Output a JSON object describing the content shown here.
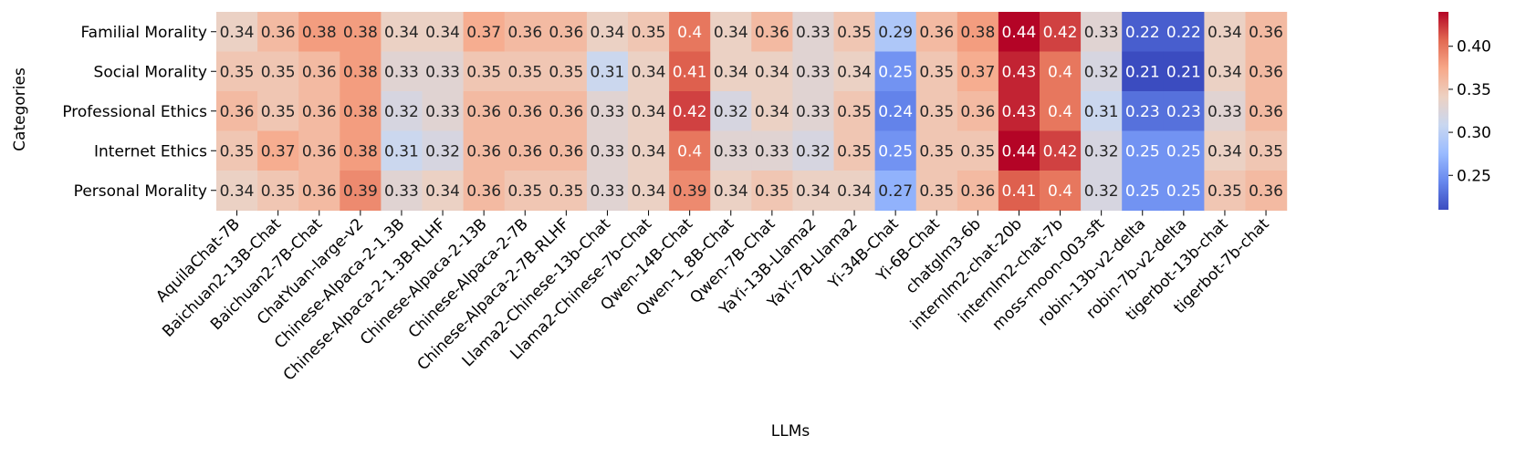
{
  "chart_data": {
    "type": "heatmap",
    "title": "",
    "xlabel": "LLMs",
    "ylabel": "Categories",
    "rows": [
      "Familial Morality",
      "Social Morality",
      "Professional Ethics",
      "Internet Ethics",
      "Personal Morality"
    ],
    "columns": [
      "AquilaChat-7B",
      "Baichuan2-13B-Chat",
      "Baichuan2-7B-Chat",
      "ChatYuan-large-v2",
      "Chinese-Alpaca-2-1.3B",
      "Chinese-Alpaca-2-1.3B-RLHF",
      "Chinese-Alpaca-2-13B",
      "Chinese-Alpaca-2-7B",
      "Chinese-Alpaca-2-7B-RLHF",
      "Llama2-Chinese-13b-Chat",
      "Llama2-Chinese-7b-Chat",
      "Qwen-14B-Chat",
      "Qwen-1_8B-Chat",
      "Qwen-7B-Chat",
      "YaYi-13B-Llama2",
      "YaYi-7B-Llama2",
      "Yi-34B-Chat",
      "Yi-6B-Chat",
      "chatglm3-6b",
      "internlm2-chat-20b",
      "internlm2-chat-7b",
      "moss-moon-003-sft",
      "robin-13b-v2-delta",
      "robin-7b-v2-delta",
      "tigerbot-13b-chat",
      "tigerbot-7b-chat"
    ],
    "values": [
      [
        0.34,
        0.36,
        0.38,
        0.38,
        0.34,
        0.34,
        0.37,
        0.36,
        0.36,
        0.34,
        0.35,
        0.4,
        0.34,
        0.36,
        0.33,
        0.35,
        0.29,
        0.36,
        0.38,
        0.44,
        0.42,
        0.33,
        0.22,
        0.22,
        0.34,
        0.36
      ],
      [
        0.35,
        0.35,
        0.36,
        0.38,
        0.33,
        0.33,
        0.35,
        0.35,
        0.35,
        0.31,
        0.34,
        0.41,
        0.34,
        0.34,
        0.33,
        0.34,
        0.25,
        0.35,
        0.37,
        0.43,
        0.4,
        0.32,
        0.21,
        0.21,
        0.34,
        0.36
      ],
      [
        0.36,
        0.35,
        0.36,
        0.38,
        0.32,
        0.33,
        0.36,
        0.36,
        0.36,
        0.33,
        0.34,
        0.42,
        0.32,
        0.34,
        0.33,
        0.35,
        0.24,
        0.35,
        0.36,
        0.43,
        0.4,
        0.31,
        0.23,
        0.23,
        0.33,
        0.36
      ],
      [
        0.35,
        0.37,
        0.36,
        0.38,
        0.31,
        0.32,
        0.36,
        0.36,
        0.36,
        0.33,
        0.34,
        0.4,
        0.33,
        0.33,
        0.32,
        0.35,
        0.25,
        0.35,
        0.35,
        0.44,
        0.42,
        0.32,
        0.25,
        0.25,
        0.34,
        0.35
      ],
      [
        0.34,
        0.35,
        0.36,
        0.39,
        0.33,
        0.34,
        0.36,
        0.35,
        0.35,
        0.33,
        0.34,
        0.39,
        0.34,
        0.35,
        0.34,
        0.34,
        0.27,
        0.35,
        0.36,
        0.41,
        0.4,
        0.32,
        0.25,
        0.25,
        0.35,
        0.36
      ]
    ],
    "value_labels": [
      [
        "0.34",
        "0.36",
        "0.38",
        "0.38",
        "0.34",
        "0.34",
        "0.37",
        "0.36",
        "0.36",
        "0.34",
        "0.35",
        "0.4",
        "0.34",
        "0.36",
        "0.33",
        "0.35",
        "0.29",
        "0.36",
        "0.38",
        "0.44",
        "0.42",
        "0.33",
        "0.22",
        "0.22",
        "0.34",
        "0.36"
      ],
      [
        "0.35",
        "0.35",
        "0.36",
        "0.38",
        "0.33",
        "0.33",
        "0.35",
        "0.35",
        "0.35",
        "0.31",
        "0.34",
        "0.41",
        "0.34",
        "0.34",
        "0.33",
        "0.34",
        "0.25",
        "0.35",
        "0.37",
        "0.43",
        "0.4",
        "0.32",
        "0.21",
        "0.21",
        "0.34",
        "0.36"
      ],
      [
        "0.36",
        "0.35",
        "0.36",
        "0.38",
        "0.32",
        "0.33",
        "0.36",
        "0.36",
        "0.36",
        "0.33",
        "0.34",
        "0.42",
        "0.32",
        "0.34",
        "0.33",
        "0.35",
        "0.24",
        "0.35",
        "0.36",
        "0.43",
        "0.4",
        "0.31",
        "0.23",
        "0.23",
        "0.33",
        "0.36"
      ],
      [
        "0.35",
        "0.37",
        "0.36",
        "0.38",
        "0.31",
        "0.32",
        "0.36",
        "0.36",
        "0.36",
        "0.33",
        "0.34",
        "0.4",
        "0.33",
        "0.33",
        "0.32",
        "0.35",
        "0.25",
        "0.35",
        "0.35",
        "0.44",
        "0.42",
        "0.32",
        "0.25",
        "0.25",
        "0.34",
        "0.35"
      ],
      [
        "0.34",
        "0.35",
        "0.36",
        "0.39",
        "0.33",
        "0.34",
        "0.36",
        "0.35",
        "0.35",
        "0.33",
        "0.34",
        "0.39",
        "0.34",
        "0.35",
        "0.34",
        "0.34",
        "0.27",
        "0.35",
        "0.36",
        "0.41",
        "0.4",
        "0.32",
        "0.25",
        "0.25",
        "0.35",
        "0.36"
      ]
    ],
    "colormap": "coolwarm",
    "colormap_stops": [
      "#3b4cc0",
      "#6788ee",
      "#9abbff",
      "#c9d7f0",
      "#edd1c2",
      "#f7a889",
      "#e26952",
      "#b40426"
    ],
    "color_range": [
      0.21,
      0.44
    ],
    "colorbar": {
      "ticks": [
        0.25,
        0.3,
        0.35,
        0.4
      ],
      "tick_labels": [
        "0.25",
        "0.30",
        "0.35",
        "0.40"
      ]
    },
    "annotations": true,
    "grid": false,
    "legend": "colorbar-right"
  }
}
